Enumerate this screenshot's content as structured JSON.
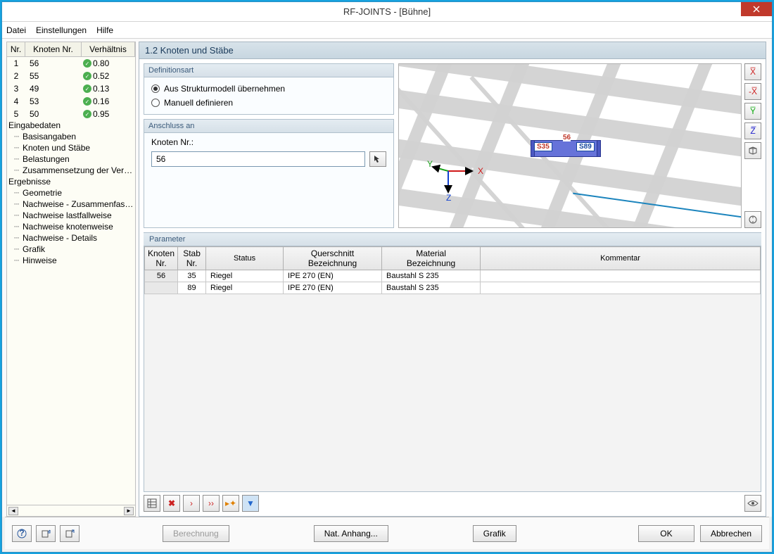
{
  "title": "RF-JOINTS - [Bühne]",
  "menu": {
    "file": "Datei",
    "settings": "Einstellungen",
    "help": "Hilfe"
  },
  "nodeList": {
    "headers": {
      "nr": "Nr.",
      "knoten": "Knoten Nr.",
      "verh": "Verhältnis"
    },
    "rows": [
      {
        "nr": "1",
        "knoten": "56",
        "ratio": "0.80"
      },
      {
        "nr": "2",
        "knoten": "55",
        "ratio": "0.52"
      },
      {
        "nr": "3",
        "knoten": "49",
        "ratio": "0.13"
      },
      {
        "nr": "4",
        "knoten": "53",
        "ratio": "0.16"
      },
      {
        "nr": "5",
        "knoten": "50",
        "ratio": "0.95"
      }
    ]
  },
  "tree": {
    "input": "Eingabedaten",
    "input_items": [
      "Basisangaben",
      "Knoten und Stäbe",
      "Belastungen",
      "Zusammensetzung der Verbindung"
    ],
    "results": "Ergebnisse",
    "results_items": [
      "Geometrie",
      "Nachweise - Zusammenfassung",
      "Nachweise lastfallweise",
      "Nachweise knotenweise",
      "Nachweise - Details",
      "Grafik",
      "Hinweise"
    ]
  },
  "section_title": "1.2 Knoten und Stäbe",
  "defart": {
    "title": "Definitionsart",
    "opt1": "Aus Strukturmodell übernehmen",
    "opt2": "Manuell definieren"
  },
  "anschluss": {
    "title": "Anschluss an",
    "label": "Knoten Nr.:",
    "value": "56"
  },
  "param": {
    "title": "Parameter",
    "headers": {
      "knoten": "Knoten\nNr.",
      "stab": "Stab\nNr.",
      "status": "Status",
      "quer": "Querschnitt\nBezeichnung",
      "material": "Material\nBezeichnung",
      "kommentar": "Kommentar"
    },
    "rows": [
      {
        "knoten": "56",
        "stab": "35",
        "status": "Riegel",
        "quer": "IPE 270 (EN)",
        "material": "Baustahl S 235",
        "kommentar": ""
      },
      {
        "knoten": "",
        "stab": "89",
        "status": "Riegel",
        "quer": "IPE 270 (EN)",
        "material": "Baustahl S 235",
        "kommentar": ""
      }
    ]
  },
  "viewport": {
    "labels": {
      "s35": "S35",
      "n56": "56",
      "s89": "S89"
    },
    "axis": {
      "x": "X",
      "y": "Y",
      "z": "Z"
    }
  },
  "footer": {
    "calc": "Berechnung",
    "nat": "Nat. Anhang...",
    "grafik": "Grafik",
    "ok": "OK",
    "cancel": "Abbrechen"
  }
}
